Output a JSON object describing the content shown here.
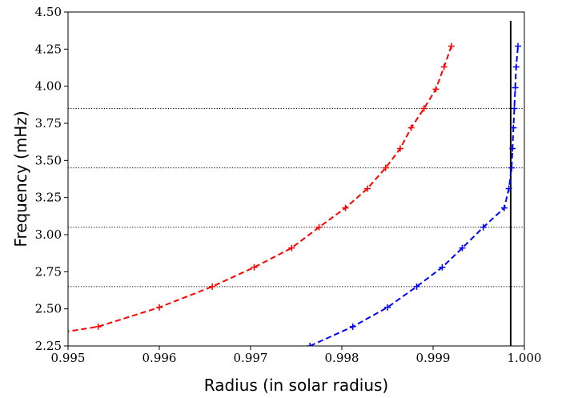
{
  "chart_data": {
    "type": "line",
    "title": "",
    "xlabel": "Radius (in solar radius)",
    "ylabel": "Frequency (mHz)",
    "xlim": [
      0.995,
      1.0
    ],
    "ylim": [
      2.25,
      4.5
    ],
    "x_ticks": [
      0.995,
      0.996,
      0.997,
      0.998,
      0.999,
      1.0
    ],
    "x_tick_labels": [
      "0.995",
      "0.996",
      "0.997",
      "0.998",
      "0.999",
      "1.000"
    ],
    "y_ticks": [
      2.25,
      2.5,
      2.75,
      3.0,
      3.25,
      3.5,
      3.75,
      4.0,
      4.25,
      4.5
    ],
    "y_tick_labels": [
      "2.25",
      "2.50",
      "2.75",
      "3.00",
      "3.25",
      "3.50",
      "3.75",
      "4.00",
      "4.25",
      "4.50"
    ],
    "grid": false,
    "legend": "none",
    "horizontal_reference_lines": [
      2.65,
      3.05,
      3.45,
      3.85
    ],
    "vertical_reference_line": 0.99985,
    "series": [
      {
        "color": "#ff0000",
        "line_style": "dashed",
        "marker": "+",
        "x": [
          0.994,
          0.99533,
          0.996,
          0.99658,
          0.99704,
          0.99745,
          0.99775,
          0.99804,
          0.99828,
          0.99848,
          0.99864,
          0.99876,
          0.9989,
          0.99903,
          0.99912,
          0.9992
        ],
        "y": [
          2.25,
          2.38,
          2.51,
          2.65,
          2.78,
          2.91,
          3.05,
          3.18,
          3.31,
          3.45,
          3.58,
          3.72,
          3.85,
          3.98,
          4.13,
          4.27
        ]
      },
      {
        "color": "#0000ff",
        "line_style": "dashed",
        "marker": "+",
        "x": [
          0.99765,
          0.99812,
          0.9985,
          0.99882,
          0.9991,
          0.99932,
          0.99955,
          0.99978,
          0.99983,
          0.99986,
          0.99987,
          0.99988,
          0.99989,
          0.9999,
          0.99991,
          0.99993
        ],
        "y": [
          2.25,
          2.38,
          2.51,
          2.65,
          2.78,
          2.91,
          3.05,
          3.18,
          3.31,
          3.45,
          3.58,
          3.72,
          3.85,
          3.99,
          4.13,
          4.27
        ]
      }
    ]
  }
}
